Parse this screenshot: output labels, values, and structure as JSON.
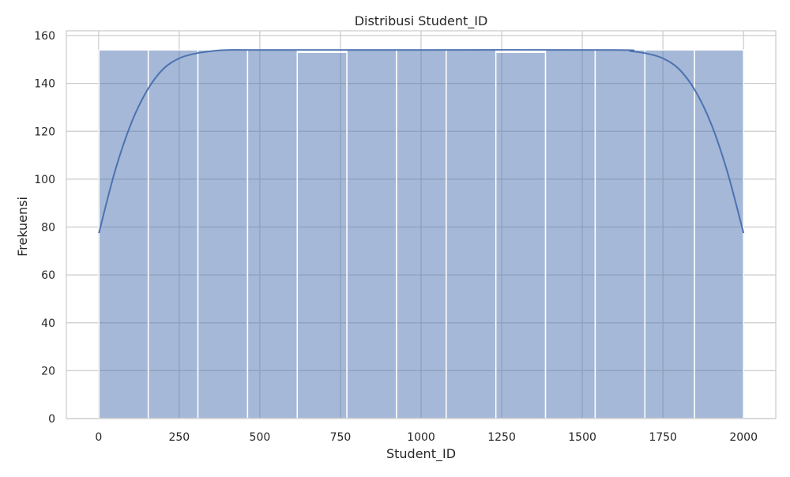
{
  "chart_data": {
    "type": "bar",
    "title": "Distribusi Student_ID",
    "xlabel": "Student_ID",
    "ylabel": "Frekuensi",
    "xlim": [
      -100,
      2100
    ],
    "ylim": [
      0,
      162
    ],
    "xticks": [
      0,
      250,
      500,
      750,
      1000,
      1250,
      1500,
      1750,
      2000
    ],
    "yticks": [
      0,
      20,
      40,
      60,
      80,
      100,
      120,
      140,
      160
    ],
    "grid": true,
    "bins": [
      {
        "x0": 1,
        "x1": 154,
        "value": 154
      },
      {
        "x0": 154,
        "x1": 308,
        "value": 154
      },
      {
        "x0": 308,
        "x1": 462,
        "value": 154
      },
      {
        "x0": 462,
        "x1": 616,
        "value": 154
      },
      {
        "x0": 616,
        "x1": 770,
        "value": 153
      },
      {
        "x0": 770,
        "x1": 924,
        "value": 154
      },
      {
        "x0": 924,
        "x1": 1078,
        "value": 154
      },
      {
        "x0": 1078,
        "x1": 1232,
        "value": 154
      },
      {
        "x0": 1232,
        "x1": 1386,
        "value": 153
      },
      {
        "x0": 1386,
        "x1": 1540,
        "value": 154
      },
      {
        "x0": 1540,
        "x1": 1694,
        "value": 154
      },
      {
        "x0": 1694,
        "x1": 1848,
        "value": 154
      },
      {
        "x0": 1848,
        "x1": 2000,
        "value": 154
      }
    ],
    "kde": {
      "x": [
        1,
        50,
        100,
        150,
        200,
        250,
        300,
        350,
        400,
        500,
        1000,
        1600,
        1650,
        1700,
        1750,
        1800,
        1850,
        1900,
        1950,
        2000
      ],
      "y": [
        77.5,
        103,
        123,
        137,
        146,
        150.5,
        152.5,
        153.5,
        154,
        154,
        154,
        154,
        153.5,
        152.5,
        150.5,
        146,
        137,
        123,
        103,
        77.5
      ]
    },
    "colors": {
      "bar_fill": "#4c72b0",
      "bar_opacity": 0.5,
      "bar_edge": "#ffffff",
      "kde_line": "#4c72b0",
      "grid": "#cccccc",
      "spine": "#cccccc"
    }
  }
}
